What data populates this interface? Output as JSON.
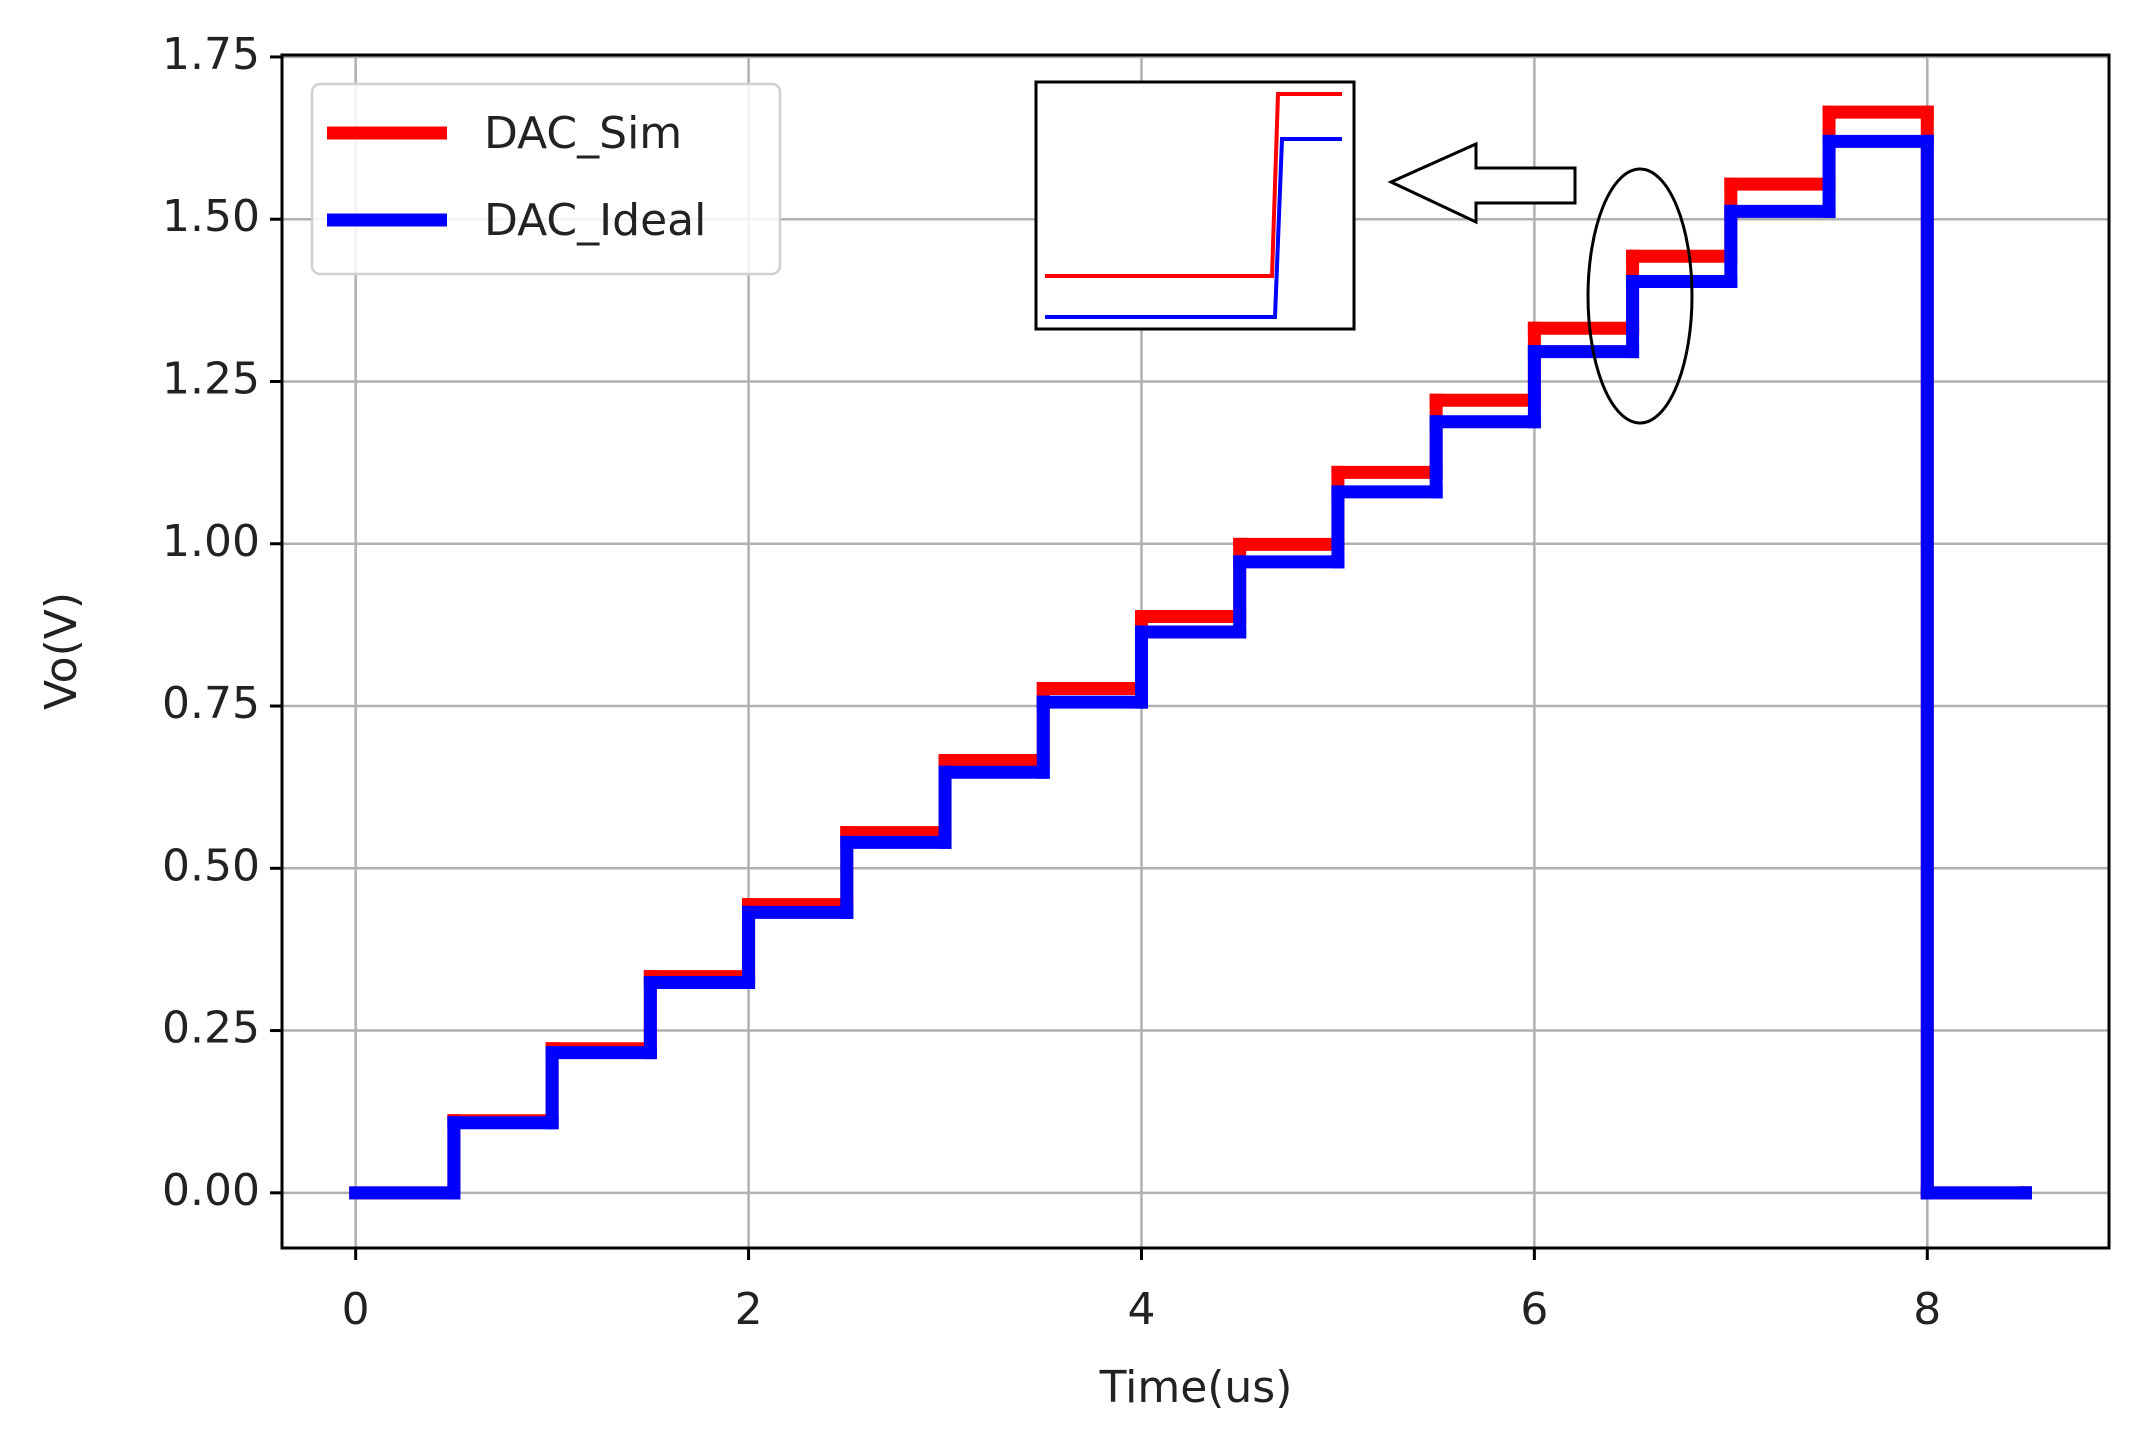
{
  "chart_data": {
    "type": "step",
    "x_label": "Time(us)",
    "y_label": "Vo(V)",
    "x": [
      0,
      0.5,
      1,
      1.5,
      2,
      2.5,
      3,
      3.5,
      4,
      4.5,
      5,
      5.5,
      6,
      6.5,
      7,
      7.5,
      8,
      8.5
    ],
    "series": [
      {
        "name": "DAC_Sim",
        "color": "#ff0000",
        "values": [
          0,
          0.111,
          0.222,
          0.333,
          0.444,
          0.555,
          0.666,
          0.777,
          0.888,
          0.999,
          1.11,
          1.221,
          1.332,
          1.443,
          1.554,
          1.665,
          0,
          0
        ]
      },
      {
        "name": "DAC_Ideal",
        "color": "#0000ff",
        "values": [
          0,
          0.108,
          0.216,
          0.324,
          0.432,
          0.54,
          0.648,
          0.756,
          0.864,
          0.972,
          1.08,
          1.188,
          1.296,
          1.404,
          1.512,
          1.62,
          0,
          0
        ]
      }
    ],
    "xlim": [
      -0.375,
      8.925
    ],
    "xticks": [
      0,
      2,
      4,
      6,
      8
    ],
    "ylim": [
      -0.085,
      1.753
    ],
    "yticks": [
      {
        "value": 0,
        "label": "0.00"
      },
      {
        "value": 0.25,
        "label": "0.25"
      },
      {
        "value": 0.5,
        "label": "0.50"
      },
      {
        "value": 0.75,
        "label": "0.75"
      },
      {
        "value": 1,
        "label": "1.00"
      },
      {
        "value": 1.25,
        "label": "1.25"
      },
      {
        "value": 1.5,
        "label": "1.50"
      },
      {
        "value": 1.75,
        "label": "1.75"
      }
    ],
    "grid": true,
    "legend": "upper-left"
  }
}
